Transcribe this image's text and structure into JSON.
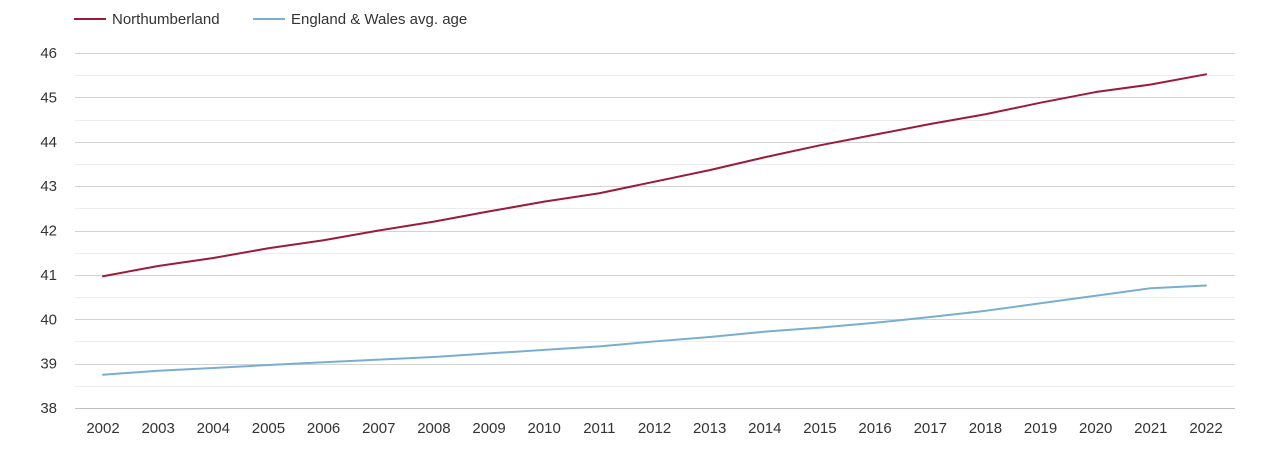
{
  "chart_data": {
    "type": "line",
    "title": "",
    "xlabel": "",
    "ylabel": "",
    "x": [
      2002,
      2003,
      2004,
      2005,
      2006,
      2007,
      2008,
      2009,
      2010,
      2011,
      2012,
      2013,
      2014,
      2015,
      2016,
      2017,
      2018,
      2019,
      2020,
      2021,
      2022
    ],
    "x_tick_labels": [
      "2002",
      "2003",
      "2004",
      "2005",
      "2006",
      "2007",
      "2008",
      "2009",
      "2010",
      "2011",
      "2012",
      "2013",
      "2014",
      "2015",
      "2016",
      "2017",
      "2018",
      "2019",
      "2020",
      "2021",
      "2022"
    ],
    "ylim": [
      38,
      46
    ],
    "y_ticks": [
      38,
      39,
      40,
      41,
      42,
      43,
      44,
      45,
      46
    ],
    "y_tick_labels": [
      "38",
      "39",
      "40",
      "41",
      "42",
      "43",
      "44",
      "45",
      "46"
    ],
    "grid": true,
    "minor_grid": true,
    "legend_position": "top-left",
    "series": [
      {
        "name": "Northumberland",
        "color": "#9b1b3a",
        "values": [
          40.97,
          41.2,
          41.38,
          41.6,
          41.78,
          42.0,
          42.2,
          42.43,
          42.65,
          42.84,
          43.1,
          43.36,
          43.65,
          43.92,
          44.16,
          44.4,
          44.62,
          44.88,
          45.12,
          45.29,
          45.52
        ]
      },
      {
        "name": "England & Wales avg. age",
        "color": "#7aaed1",
        "values": [
          38.75,
          38.84,
          38.9,
          38.97,
          39.03,
          39.09,
          39.15,
          39.23,
          39.31,
          39.39,
          39.5,
          39.6,
          39.72,
          39.81,
          39.92,
          40.05,
          40.19,
          40.36,
          40.53,
          40.7,
          40.76
        ]
      }
    ]
  }
}
